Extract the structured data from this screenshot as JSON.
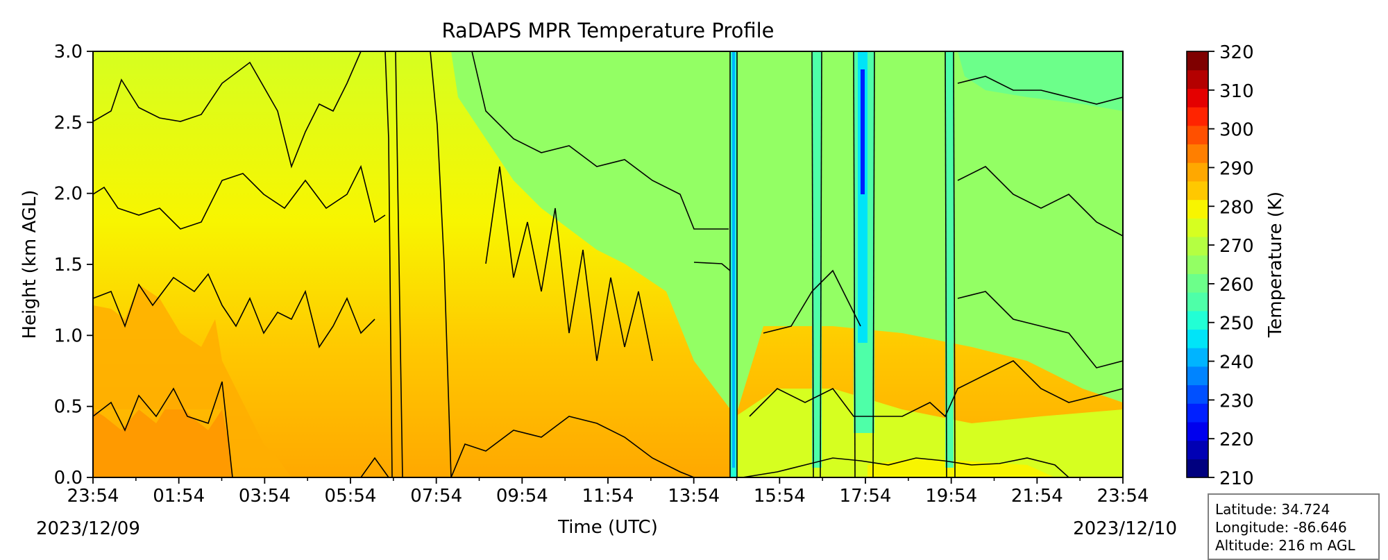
{
  "chart_data": {
    "type": "contour",
    "title": "RaDAPS MPR Temperature Profile",
    "xlabel": "Time (UTC)",
    "ylabel": "Height (km AGL)",
    "x_ticks": [
      "23:54",
      "01:54",
      "03:54",
      "05:54",
      "07:54",
      "09:54",
      "11:54",
      "13:54",
      "15:54",
      "17:54",
      "19:54",
      "21:54",
      "23:54"
    ],
    "x_hours": [
      0,
      2,
      4,
      6,
      8,
      10,
      12,
      14,
      16,
      18,
      20,
      22,
      24
    ],
    "xlim": [
      0,
      24
    ],
    "date_start": "2023/12/09",
    "date_end": "2023/12/10",
    "y_ticks": [
      "0.0",
      "0.5",
      "1.0",
      "1.5",
      "2.0",
      "2.5",
      "3.0"
    ],
    "y_values": [
      0.0,
      0.5,
      1.0,
      1.5,
      2.0,
      2.5,
      3.0
    ],
    "ylim": [
      0,
      3.0
    ],
    "colorbar": {
      "label": "Temperature (K)",
      "ticks": [
        "210",
        "220",
        "230",
        "240",
        "250",
        "260",
        "270",
        "280",
        "290",
        "300",
        "310",
        "320"
      ],
      "values": [
        210,
        220,
        230,
        240,
        250,
        260,
        270,
        280,
        290,
        300,
        310,
        320
      ],
      "colors": [
        "#00007f",
        "#0000b4",
        "#0000ee",
        "#0020ff",
        "#0050ff",
        "#0084ff",
        "#00b4ff",
        "#00e4f8",
        "#22ffd5",
        "#4effa8",
        "#6cff8a",
        "#93ff64",
        "#b4ff42",
        "#d6ff20",
        "#f8f500",
        "#ffc800",
        "#ffa800",
        "#ff7f00",
        "#ff5000",
        "#ff2400",
        "#e40000",
        "#b40000",
        "#7f0000"
      ]
    },
    "profile_2023_12_09_23_54": {
      "height_km": [
        0.0,
        0.5,
        1.0,
        1.5,
        2.0,
        2.5,
        3.0
      ],
      "temperature_k": [
        286,
        284,
        281,
        279,
        277,
        275,
        272
      ]
    },
    "station": {
      "latitude": "Latitude: 34.724",
      "longitude": "Longitude: -86.646",
      "altitude": "Altitude: 216 m AGL"
    }
  }
}
